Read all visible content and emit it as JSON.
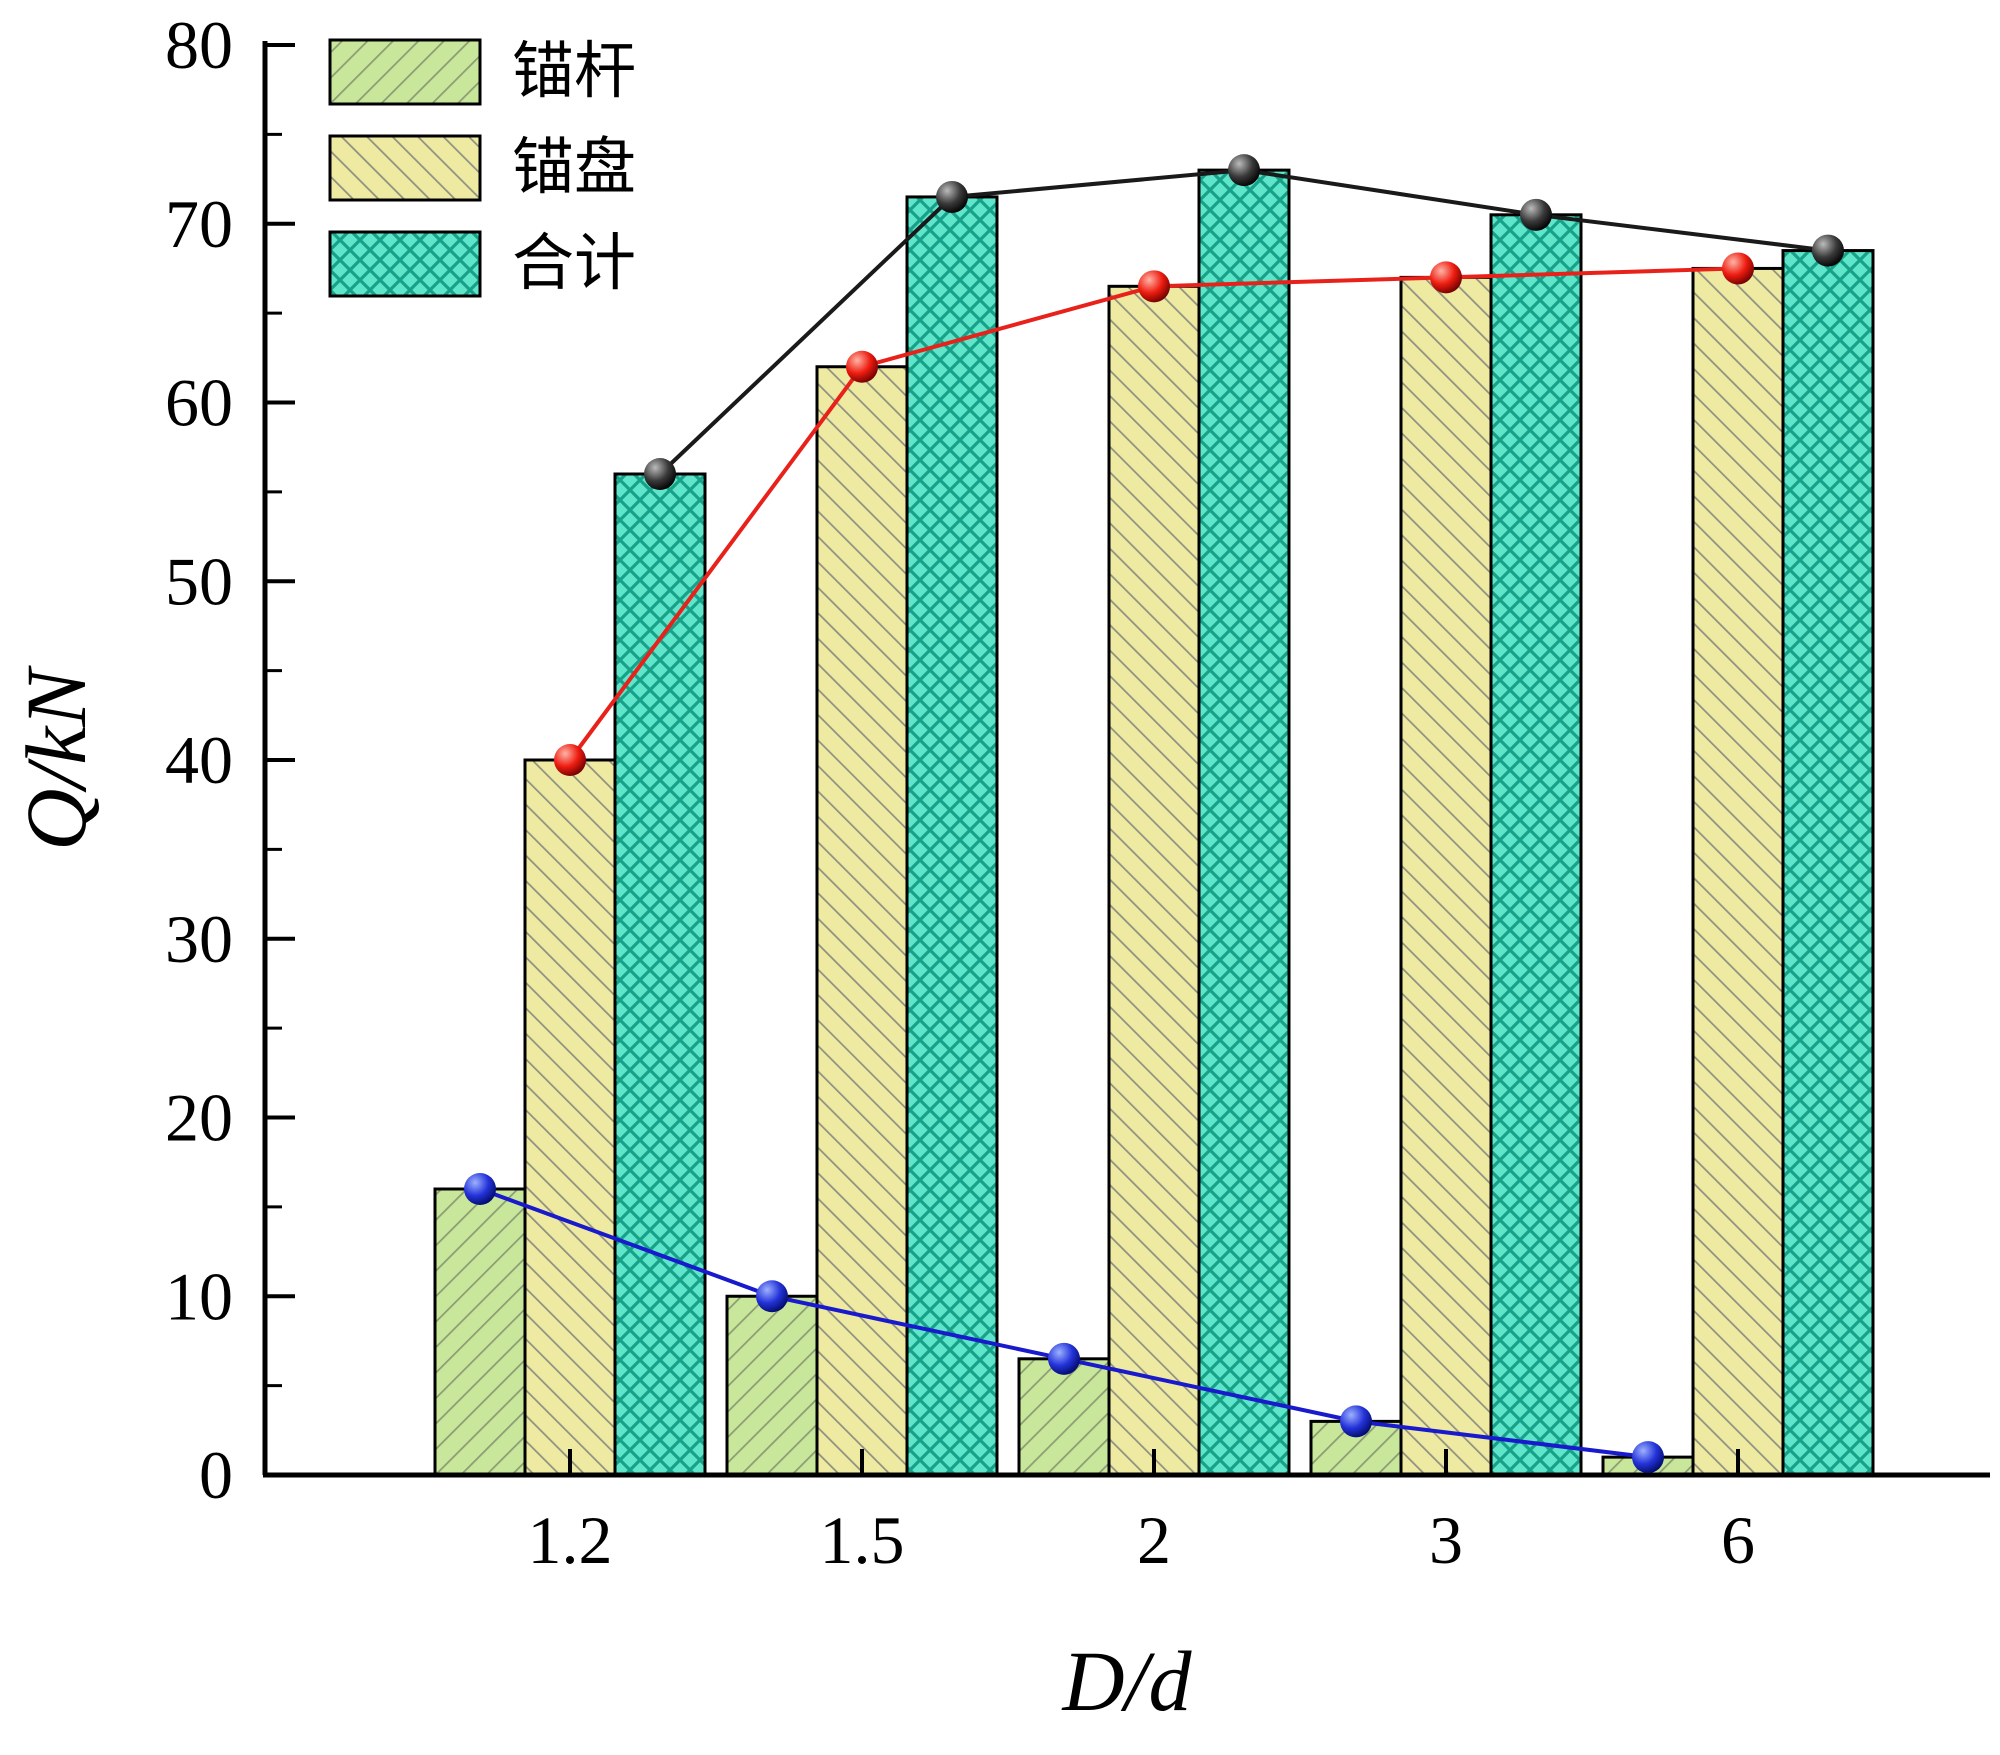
{
  "chart_data": {
    "type": "bar",
    "title": "",
    "xlabel": "D/d",
    "ylabel": "Q/kN",
    "categories": [
      "1.2",
      "1.5",
      "2",
      "3",
      "6"
    ],
    "ylim": [
      0,
      80
    ],
    "ytick_step": 10,
    "ytick_minor_step": 5,
    "yticks": [
      0,
      10,
      20,
      30,
      40,
      50,
      60,
      70,
      80
    ],
    "grid": false,
    "legend_position": "top-left-inside",
    "background": "#ffffff",
    "axis_color": "#000000",
    "series": [
      {
        "name": "锚杆",
        "values": [
          16,
          10,
          6.5,
          3,
          1
        ],
        "bar_fill": "#c9e79b",
        "hatch": "forward-diagonal",
        "hatch_color": "#8c9c74",
        "line_color": "#1a1acd",
        "marker_colors": [
          "#9db1ff",
          "#2433d9",
          "#000a66"
        ]
      },
      {
        "name": "锚盘",
        "values": [
          40,
          62,
          66.5,
          67,
          67.5
        ],
        "bar_fill": "#efeaa2",
        "hatch": "backward-diagonal",
        "hatch_color": "#8f9180",
        "line_color": "#e8221a",
        "marker_colors": [
          "#ffb4a6",
          "#ee1c10",
          "#6b0000"
        ]
      },
      {
        "name": "合计",
        "values": [
          56,
          71.5,
          73,
          70.5,
          68.5
        ],
        "bar_fill": "#5fe5ca",
        "hatch": "cross",
        "hatch_color": "#17a189",
        "line_color": "#1a1a1a",
        "marker_colors": [
          "#bbbbbb",
          "#3a3a3a",
          "#000000"
        ]
      }
    ]
  }
}
